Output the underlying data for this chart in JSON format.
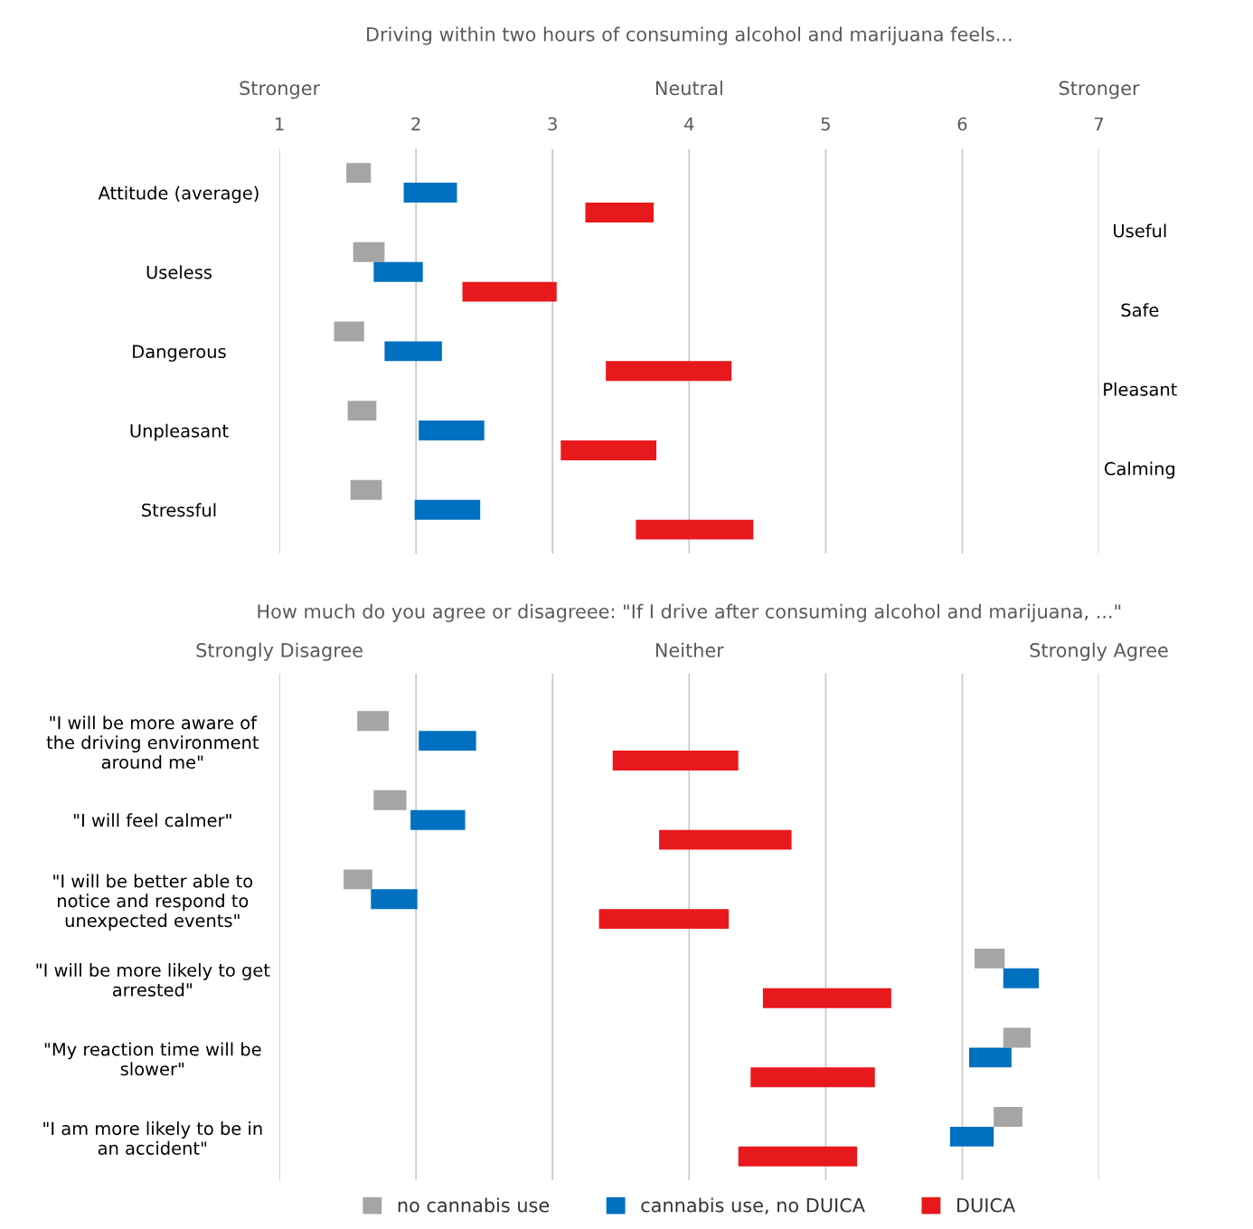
{
  "chart_data": [
    {
      "type": "bar",
      "orientation": "horizontal",
      "title": "Driving within two hours of consuming alcohol and marijuana feels...",
      "categories": [
        "Attitude (average)",
        "Useless",
        "Dangerous",
        "Unpleasant",
        "Stressful"
      ],
      "series": [
        {
          "color": "#a5a5a5",
          "base": [
            1.49,
            1.54,
            1.4,
            1.5,
            1.52
          ],
          "values": [
            0.18,
            0.23,
            0.22,
            0.21,
            0.23
          ]
        },
        {
          "color": "#0070c0",
          "base": [
            1.91,
            1.69,
            1.77,
            2.02,
            1.99
          ],
          "values": [
            0.39,
            0.36,
            0.42,
            0.48,
            0.48
          ]
        },
        {
          "color": "#e8191c",
          "base": [
            3.24,
            2.34,
            3.39,
            3.06,
            3.61
          ],
          "values": [
            0.5,
            0.69,
            0.92,
            0.7,
            0.86
          ]
        }
      ],
      "xlim": [
        1,
        7
      ],
      "xticks": [
        1,
        2,
        3,
        4,
        5,
        6,
        7
      ],
      "annotations": [
        "Stronger",
        "Neutral",
        "Stronger",
        "Useful",
        "Safe",
        "Pleasant",
        "Calming"
      ],
      "grid": "x"
    },
    {
      "type": "bar",
      "orientation": "horizontal",
      "title": "How much do you agree or disagreee: \"If I drive after consuming alcohol and marijuana, ...\"",
      "categories": [
        "\"I will be more aware of\nthe driving environment\naround me\"",
        "\"I will feel calmer\"",
        "\"I will be better able to\nnotice and respond to\nunexpected events\"",
        "\"I will be more likely to get\narrested\"",
        "\"My reaction time will be\nslower\"",
        "\"I am more likely to be in\nan accident\""
      ],
      "series": [
        {
          "name": "no cannabis use",
          "color": "#a5a5a5",
          "base": [
            1.57,
            1.69,
            1.47,
            6.09,
            6.3,
            6.23
          ],
          "values": [
            0.23,
            0.24,
            0.21,
            0.22,
            0.2,
            0.21
          ]
        },
        {
          "name": "cannabis use, no DUICA",
          "color": "#0070c0",
          "base": [
            2.02,
            1.96,
            1.67,
            6.3,
            6.05,
            5.91
          ],
          "values": [
            0.42,
            0.4,
            0.34,
            0.26,
            0.31,
            0.32
          ]
        },
        {
          "name": "DUICA",
          "color": "#e8191c",
          "base": [
            3.44,
            3.78,
            3.34,
            4.54,
            4.45,
            4.36
          ],
          "values": [
            0.92,
            0.97,
            0.95,
            0.94,
            0.91,
            0.87
          ]
        }
      ],
      "xlim": [
        1,
        7
      ],
      "xticks": [
        1,
        2,
        3,
        4,
        5,
        6,
        7
      ],
      "tick_labels": "y",
      "annotations": [
        "Strongly Disagree",
        "Neither",
        "Strongly Agree"
      ],
      "grid": "x",
      "legend": "bottom"
    }
  ]
}
